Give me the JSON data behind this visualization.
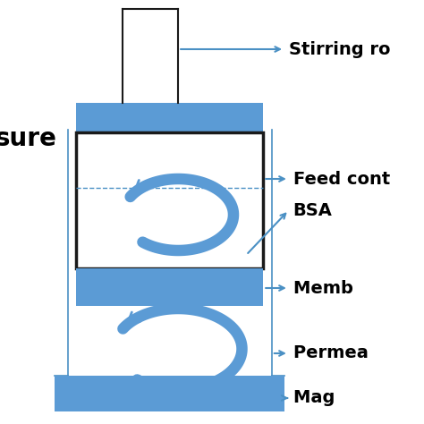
{
  "blue": "#5b9bd5",
  "black": "#1a1a1a",
  "bg": "#ffffff",
  "arrow_blue": "#4a90c4",
  "lw_thick": 2.5,
  "lw_thin": 1.2,
  "figsize": [
    4.74,
    4.74
  ],
  "dpi": 100,
  "labels": {
    "stirring": "Stirring ro⁠",
    "pressure": "⁠sure",
    "feed": "Feed cont⁠",
    "bsa": "BSA",
    "membrane": "Memb⁠",
    "permeate": "Permea⁠",
    "magnet": "Mag⁠"
  }
}
